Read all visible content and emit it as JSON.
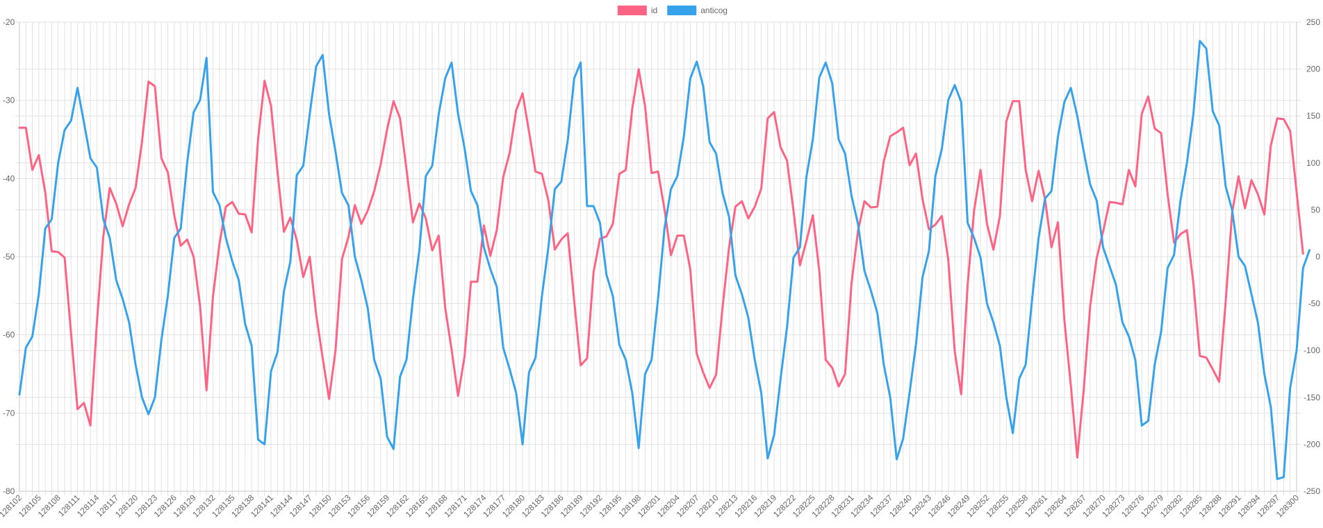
{
  "chart_data": {
    "type": "line",
    "title": "",
    "xlabel": "",
    "ylabel": "",
    "y2label": "",
    "legend_position": "top",
    "grid": true,
    "x_start": 128102,
    "x_end": 128300,
    "x_tick_labels": [
      "128102",
      "128105",
      "128108",
      "128111",
      "128114",
      "128117",
      "128120",
      "128123",
      "128126",
      "128129",
      "128132",
      "128135",
      "128138",
      "128141",
      "128144",
      "128147",
      "128150",
      "128153",
      "128156",
      "128159",
      "128162",
      "128165",
      "128168",
      "128171",
      "128174",
      "128177",
      "128180",
      "128183",
      "128186",
      "128189",
      "128192",
      "128195",
      "128198",
      "128201",
      "128204",
      "128207",
      "128210",
      "128213",
      "128216",
      "128219",
      "128222",
      "128225",
      "128228",
      "128231",
      "128234",
      "128237",
      "128240",
      "128243",
      "128246",
      "128249",
      "128252",
      "128255",
      "128258",
      "128261",
      "128264",
      "128267",
      "128270",
      "128273",
      "128276",
      "128279",
      "128282",
      "128285",
      "128288",
      "128291",
      "128294",
      "128297",
      "128300"
    ],
    "y_left": {
      "range": [
        -80,
        -20
      ],
      "ticks": [
        -80,
        -70,
        -60,
        -50,
        -40,
        -30,
        -20
      ]
    },
    "y_right": {
      "range": [
        -250,
        250
      ],
      "ticks": [
        -250,
        -200,
        -150,
        -100,
        -50,
        0,
        50,
        100,
        150,
        200,
        250
      ]
    },
    "series": [
      {
        "name": "id",
        "color": "#ff6384",
        "axis": "left",
        "x_start": 128102,
        "values": [
          -33.5,
          -33.5,
          -38.9,
          -37,
          -41.8,
          -49.3,
          -49.4,
          -50.1,
          -59.8,
          -69.5,
          -68.7,
          -71.6,
          -58.5,
          -47.4,
          -41.2,
          -43.2,
          -46.1,
          -43.3,
          -41.2,
          -35.3,
          -27.6,
          -28.2,
          -37.4,
          -39.2,
          -44.7,
          -48.6,
          -47.8,
          -50,
          -56.3,
          -67.1,
          -55.1,
          -48.4,
          -43.6,
          -43,
          -44.5,
          -44.6,
          -46.9,
          -34.9,
          -27.5,
          -30.7,
          -39.1,
          -46.8,
          -45,
          -47.9,
          -52.6,
          -50,
          -57.4,
          -62.9,
          -68.2,
          -62,
          -50.3,
          -47.5,
          -43.4,
          -45.8,
          -44.1,
          -41.6,
          -38.2,
          -33.7,
          -30.1,
          -32.3,
          -38.8,
          -45.6,
          -43.2,
          -45.1,
          -49.2,
          -47.3,
          -56.5,
          -61.9,
          -67.8,
          -62.8,
          -53.2,
          -53.2,
          -46,
          -49.9,
          -46.6,
          -39.8,
          -36.7,
          -31.3,
          -29.1,
          -34,
          -39.1,
          -39.4,
          -42.8,
          -49.1,
          -47.8,
          -47,
          -55.6,
          -63.9,
          -63,
          -52,
          -47.7,
          -47.4,
          -45.8,
          -39.4,
          -38.9,
          -31.1,
          -26,
          -30.8,
          -39.3,
          -39.1,
          -43.9,
          -49.8,
          -47.3,
          -47.3,
          -51.6,
          -62.4,
          -64.8,
          -66.8,
          -65.1,
          -56.5,
          -48.9,
          -43.6,
          -42.9,
          -45.1,
          -43.6,
          -41.3,
          -32.3,
          -31.5,
          -36,
          -37.7,
          -44.1,
          -51.1,
          -48,
          -44.7,
          -51.8,
          -63.2,
          -64.2,
          -66.6,
          -65,
          -53.4,
          -46.7,
          -42.9,
          -43.7,
          -43.6,
          -37.8,
          -34.6,
          -34.1,
          -33.5,
          -38.3,
          -36.8,
          -42.6,
          -46.5,
          -45.9,
          -44.8,
          -50.4,
          -62.1,
          -67.6,
          -53.6,
          -44.1,
          -38.9,
          -45.8,
          -49.1,
          -44.8,
          -32.7,
          -30.1,
          -30.1,
          -38.9,
          -42.9,
          -39,
          -42.6,
          -48.8,
          -45.6,
          -58.1,
          -66.5,
          -75.7,
          -67,
          -56.3,
          -50.2,
          -46.8,
          -43,
          -43.1,
          -43.3,
          -38.9,
          -41,
          -31.7,
          -29.5,
          -33.6,
          -34.2,
          -42,
          -48.2,
          -47.1,
          -46.6,
          -53.4,
          -62.7,
          -62.9,
          -64.4,
          -66,
          -55.8,
          -44.4,
          -39.7,
          -43.8,
          -40.2,
          -42,
          -44.6,
          -35.8,
          -32.3,
          -32.4,
          -33.9,
          -41.7,
          -49.6
        ]
      },
      {
        "name": "anticog",
        "color": "#36a2eb",
        "axis": "right",
        "x_start": 128102,
        "values": [
          -147,
          -97,
          -85,
          -40,
          30,
          40,
          100,
          135,
          145,
          180,
          143,
          105,
          95,
          40,
          20,
          -25,
          -45,
          -70,
          -115,
          -150,
          -168,
          -150,
          -89,
          -42,
          20,
          30,
          100,
          154,
          167,
          212,
          69,
          55,
          20,
          -5,
          -25,
          -72,
          -95,
          -195,
          -200,
          -122,
          -102,
          -37,
          -5,
          87,
          97,
          152,
          203,
          215,
          152,
          112,
          68,
          55,
          0,
          -25,
          -55,
          -110,
          -130,
          -192,
          -205,
          -128,
          -110,
          -45,
          7,
          86,
          97,
          152,
          190,
          207,
          152,
          116,
          70,
          55,
          10,
          -13,
          -32,
          -97,
          -120,
          -145,
          -200,
          -123,
          -108,
          -42,
          10,
          72,
          80,
          124,
          190,
          207,
          54,
          54,
          36,
          -19,
          -42,
          -94,
          -110,
          -145,
          -204,
          -125,
          -110,
          -45,
          30,
          72,
          86,
          128,
          190,
          208,
          182,
          122,
          110,
          68,
          43,
          -20,
          -40,
          -65,
          -110,
          -145,
          -215,
          -190,
          -130,
          -75,
          -1,
          10,
          85,
          125,
          191,
          207,
          185,
          125,
          110,
          65,
          35,
          -15,
          -36,
          -60,
          -115,
          -150,
          -216,
          -194,
          -145,
          -93,
          -22,
          6,
          86,
          115,
          167,
          183,
          165,
          36,
          20,
          -1,
          -50,
          -70,
          -95,
          -150,
          -188,
          -130,
          -115,
          -45,
          20,
          62,
          70,
          128,
          165,
          180,
          150,
          112,
          77,
          60,
          10,
          -10,
          -30,
          -70,
          -85,
          -110,
          -180,
          -175,
          -115,
          -80,
          -12,
          2,
          60,
          100,
          152,
          230,
          222,
          155,
          140,
          75,
          50,
          0,
          -10,
          -40,
          -70,
          -125,
          -160,
          -237,
          -235,
          -140,
          -100,
          -12,
          7
        ]
      }
    ]
  }
}
